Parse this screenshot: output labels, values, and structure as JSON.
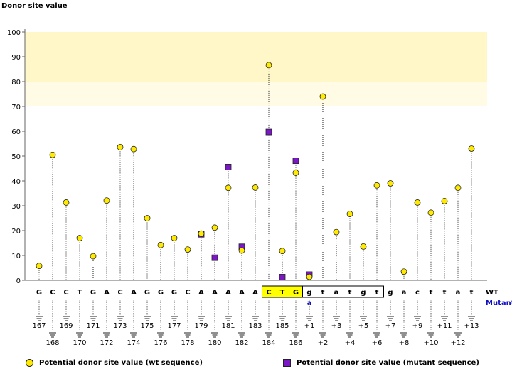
{
  "chart_data": {
    "type": "scatter",
    "title": "",
    "ylabel": "Donor site value",
    "xlabel": "",
    "ylim": [
      0,
      100
    ],
    "yticks": [
      0,
      10,
      20,
      30,
      40,
      50,
      60,
      70,
      80,
      90,
      100
    ],
    "highlight_band_strong": [
      80,
      100
    ],
    "highlight_band_weak": [
      70,
      80
    ],
    "grid": false,
    "categories": [
      {
        "base": "G",
        "pos": "167",
        "tier": "top"
      },
      {
        "base": "C",
        "pos": "168",
        "tier": "bottom"
      },
      {
        "base": "C",
        "pos": "169",
        "tier": "top"
      },
      {
        "base": "T",
        "pos": "170",
        "tier": "bottom"
      },
      {
        "base": "G",
        "pos": "171",
        "tier": "top"
      },
      {
        "base": "A",
        "pos": "172",
        "tier": "bottom"
      },
      {
        "base": "C",
        "pos": "173",
        "tier": "top"
      },
      {
        "base": "A",
        "pos": "174",
        "tier": "bottom"
      },
      {
        "base": "G",
        "pos": "175",
        "tier": "top"
      },
      {
        "base": "G",
        "pos": "176",
        "tier": "bottom"
      },
      {
        "base": "G",
        "pos": "177",
        "tier": "top"
      },
      {
        "base": "C",
        "pos": "178",
        "tier": "bottom"
      },
      {
        "base": "A",
        "pos": "179",
        "tier": "top"
      },
      {
        "base": "A",
        "pos": "180",
        "tier": "bottom"
      },
      {
        "base": "A",
        "pos": "181",
        "tier": "top"
      },
      {
        "base": "A",
        "pos": "182",
        "tier": "bottom"
      },
      {
        "base": "A",
        "pos": "183",
        "tier": "top"
      },
      {
        "base": "C",
        "pos": "184",
        "tier": "bottom",
        "boxed": true
      },
      {
        "base": "T",
        "pos": "185",
        "tier": "top",
        "boxed": true
      },
      {
        "base": "G",
        "pos": "186",
        "tier": "bottom",
        "boxed": true
      },
      {
        "base": "g",
        "pos": "+1",
        "tier": "top",
        "boxed": true,
        "mutant_base": "a"
      },
      {
        "base": "t",
        "pos": "+2",
        "tier": "bottom",
        "boxed": true
      },
      {
        "base": "a",
        "pos": "+3",
        "tier": "top",
        "boxed": true
      },
      {
        "base": "t",
        "pos": "+4",
        "tier": "bottom",
        "boxed": true
      },
      {
        "base": "g",
        "pos": "+5",
        "tier": "top",
        "boxed": true
      },
      {
        "base": "t",
        "pos": "+6",
        "tier": "bottom",
        "boxed": true
      },
      {
        "base": "g",
        "pos": "+7",
        "tier": "top"
      },
      {
        "base": "a",
        "pos": "+8",
        "tier": "bottom"
      },
      {
        "base": "c",
        "pos": "+9",
        "tier": "top"
      },
      {
        "base": "t",
        "pos": "+10",
        "tier": "bottom"
      },
      {
        "base": "t",
        "pos": "+11",
        "tier": "top"
      },
      {
        "base": "a",
        "pos": "+12",
        "tier": "bottom"
      },
      {
        "base": "t",
        "pos": "+13",
        "tier": "top"
      }
    ],
    "row_labels": {
      "wt": "WT",
      "mutant": "Mutant"
    },
    "series": [
      {
        "name": "Potential donor site value (wt sequence)",
        "marker": "circle",
        "color": "#ffea00",
        "values": [
          5.8,
          50.5,
          31.3,
          17,
          9.7,
          32.1,
          53.6,
          52.8,
          25,
          14.2,
          17,
          12.4,
          18.8,
          21.2,
          37.2,
          12,
          37.3,
          86.6,
          11.8,
          43.3,
          1.4,
          74,
          19.4,
          26.7,
          13.6,
          38.2,
          39,
          3.5,
          31.3,
          27.2,
          31.9,
          37.2,
          53
        ]
      },
      {
        "name": "Potential donor site value (mutant sequence)",
        "marker": "square",
        "color": "#7a18c6",
        "values": [
          null,
          null,
          null,
          null,
          null,
          null,
          null,
          null,
          null,
          null,
          null,
          null,
          18.5,
          9.1,
          45.6,
          13.5,
          null,
          59.7,
          1.3,
          48.1,
          2.3,
          null,
          null,
          null,
          null,
          null,
          null,
          null,
          null,
          null,
          null,
          null,
          null
        ]
      }
    ],
    "legend": [
      {
        "label": "Potential donor site value (wt sequence)",
        "marker": "circle"
      },
      {
        "label": "Potential donor site value (mutant sequence)",
        "marker": "square"
      }
    ],
    "legend_position": "bottom"
  }
}
